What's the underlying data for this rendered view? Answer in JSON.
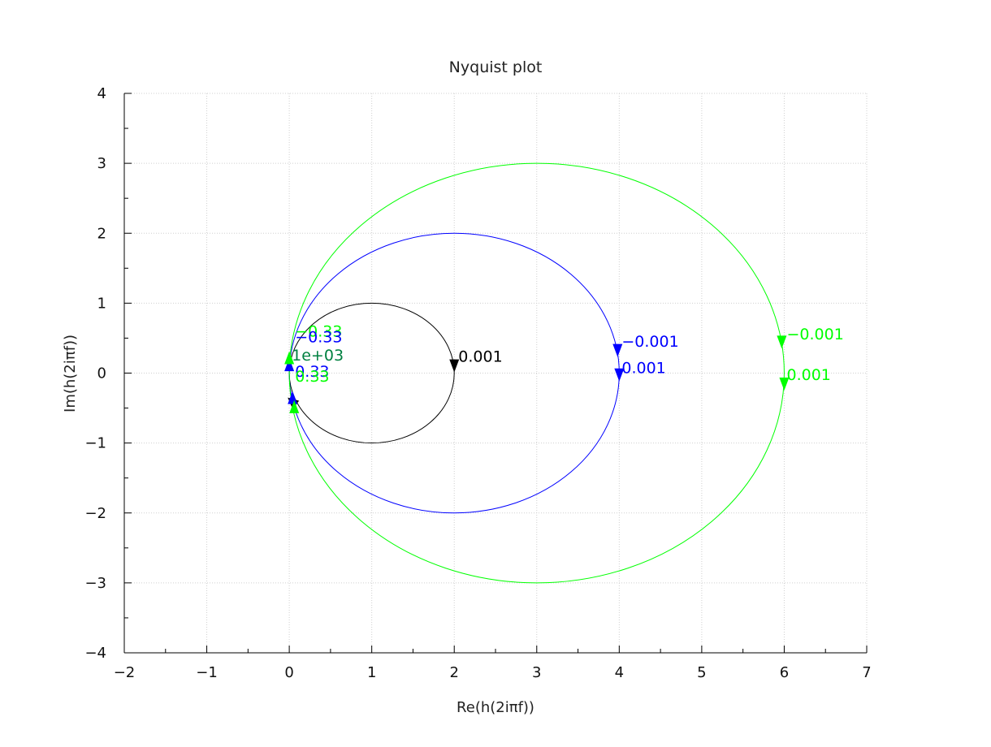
{
  "chart_data": {
    "type": "line",
    "title": "Nyquist plot",
    "xlabel": "Re(h(2iπf))",
    "ylabel": "Im(h(2iπf))",
    "xlim": [
      -2,
      7
    ],
    "ylim": [
      -4,
      4
    ],
    "x_ticks": [
      -2,
      -1,
      0,
      1,
      2,
      3,
      4,
      5,
      6,
      7
    ],
    "y_ticks": [
      -4,
      -3,
      -2,
      -1,
      0,
      1,
      2,
      3,
      4
    ],
    "grid": true,
    "series": [
      {
        "color": "#000000",
        "center": [
          1,
          0
        ],
        "radius": 1,
        "markers": [
          {
            "x": 2.0,
            "y": 0.08,
            "dir": "down"
          },
          {
            "x": 0.06,
            "y": -0.42,
            "dir": "up-left"
          }
        ]
      },
      {
        "color": "#0000ff",
        "center": [
          2,
          0
        ],
        "radius": 2,
        "markers": [
          {
            "x": 3.98,
            "y": 0.3,
            "dir": "down"
          },
          {
            "x": 4.0,
            "y": -0.05,
            "dir": "down"
          },
          {
            "x": 0.0,
            "y": 0.12,
            "dir": "up"
          },
          {
            "x": 0.04,
            "y": -0.35,
            "dir": "up"
          }
        ]
      },
      {
        "color": "#00ff00",
        "center": [
          3,
          0
        ],
        "radius": 3,
        "markers": [
          {
            "x": 5.97,
            "y": 0.42,
            "dir": "down"
          },
          {
            "x": 6.0,
            "y": -0.18,
            "dir": "down"
          },
          {
            "x": 0.0,
            "y": 0.22,
            "dir": "up"
          },
          {
            "x": 0.06,
            "y": -0.48,
            "dir": "up"
          }
        ]
      }
    ],
    "freq_labels": [
      {
        "text": "0.001",
        "x": 2.05,
        "y": 0.16,
        "color": "#000000"
      },
      {
        "text": "-0.001",
        "x": 4.03,
        "y": 0.38,
        "color": "#0000ff"
      },
      {
        "text": "0.001",
        "x": 4.03,
        "y": 0.0,
        "color": "#0000ff"
      },
      {
        "text": "-0.001",
        "x": 6.03,
        "y": 0.48,
        "color": "#00ff00"
      },
      {
        "text": "0.001",
        "x": 6.03,
        "y": -0.1,
        "color": "#00ff00"
      },
      {
        "text": "-0.33",
        "x": 0.07,
        "y": 0.52,
        "color": "#00ff00"
      },
      {
        "text": "-0.33",
        "x": 0.07,
        "y": 0.44,
        "color": "#0000ff"
      },
      {
        "text": "1e+03",
        "x": 0.03,
        "y": 0.18,
        "color": "#008040"
      },
      {
        "text": "0.33",
        "x": 0.07,
        "y": -0.05,
        "color": "#0000ff"
      },
      {
        "text": "0.33",
        "x": 0.07,
        "y": -0.12,
        "color": "#00ff00"
      }
    ]
  }
}
